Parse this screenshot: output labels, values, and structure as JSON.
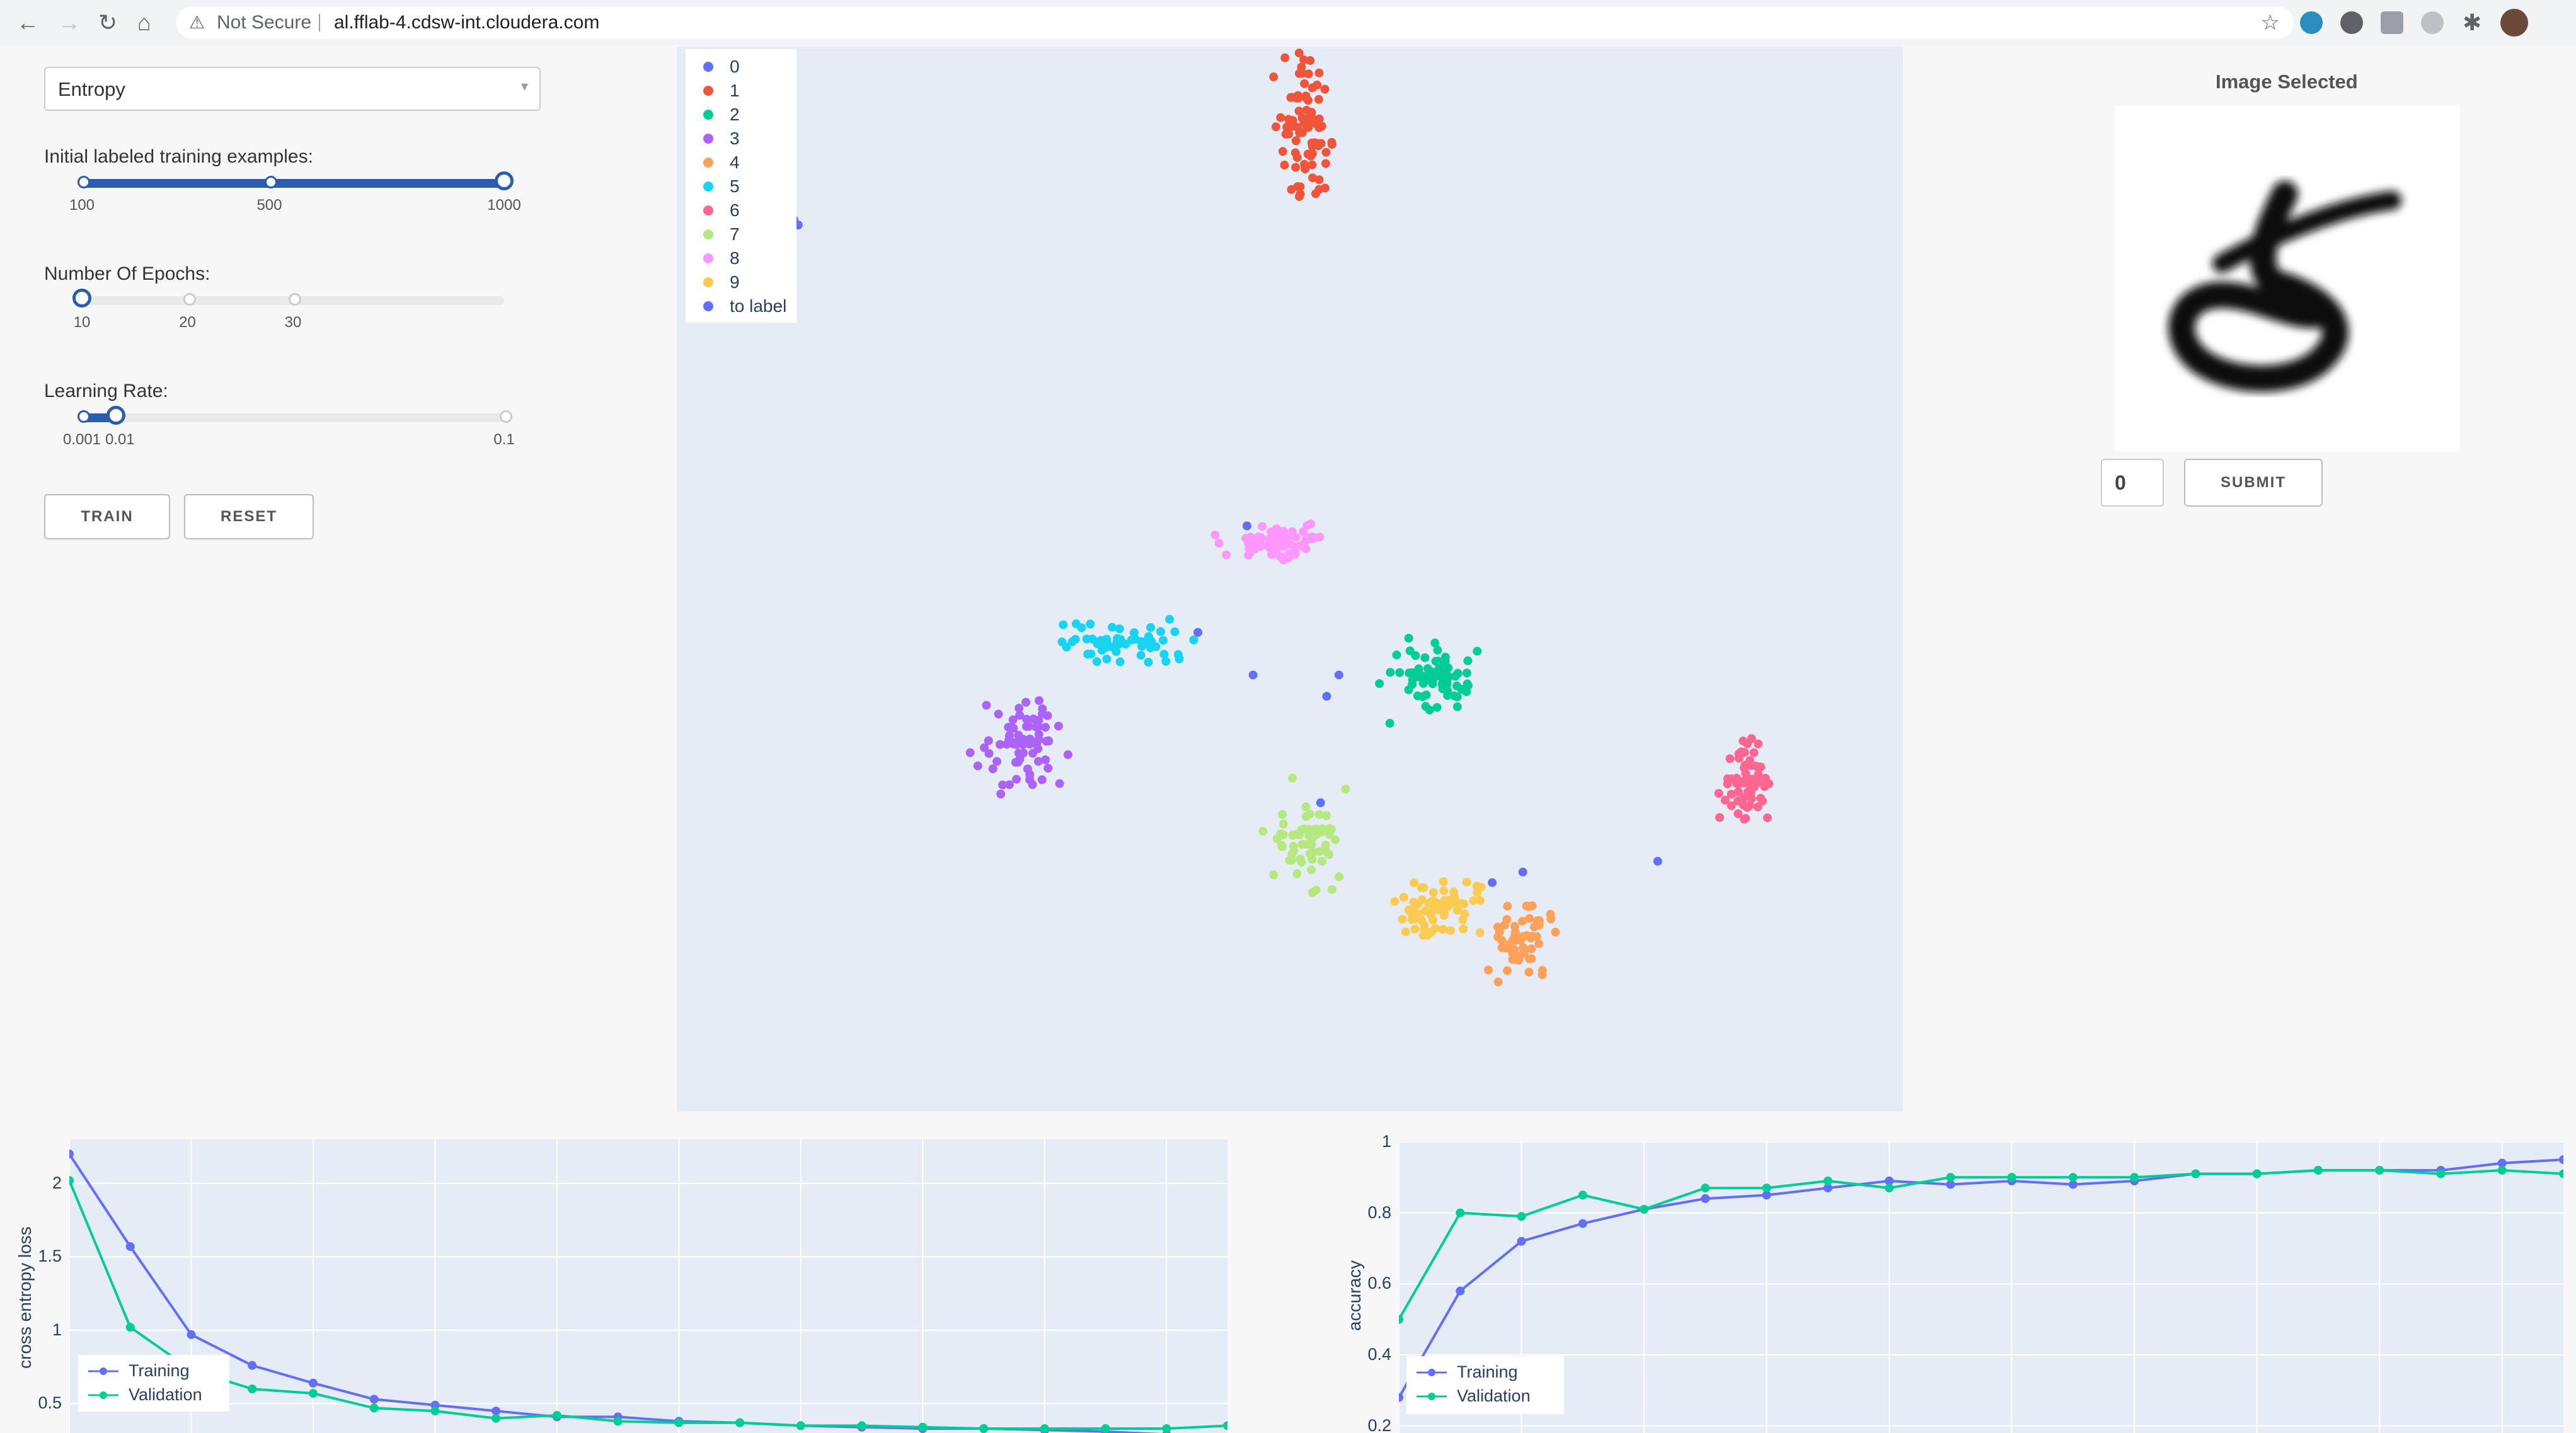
{
  "browser": {
    "security": "Not Secure",
    "url": "al.fflab-4.cdsw-int.cloudera.com",
    "icons": [
      "back-icon",
      "forward-icon",
      "reload-icon",
      "home-icon",
      "warning-icon",
      "star-icon",
      "extension-icons",
      "profile-avatar"
    ]
  },
  "controls": {
    "strategy": {
      "selected": "Entropy"
    },
    "initial_examples": {
      "label": "Initial labeled training examples:",
      "ticks": [
        "100",
        "500",
        "1000"
      ],
      "value": 1000
    },
    "epochs": {
      "label": "Number Of Epochs:",
      "ticks": [
        "10",
        "20",
        "30"
      ],
      "value": 10
    },
    "learning_rate": {
      "label": "Learning Rate:",
      "ticks": [
        "0.001",
        "0.01",
        "0.1"
      ],
      "value": 0.01
    },
    "train_label": "TRAIN",
    "reset_label": "RESET"
  },
  "image_panel": {
    "title": "Image Selected",
    "label_value": "0",
    "submit_label": "SUBMIT"
  },
  "colors": {
    "0": "#636efa",
    "1": "#ef553b",
    "2": "#00cc96",
    "3": "#ab63fa",
    "4": "#ffa15a",
    "5": "#19d3f3",
    "6": "#ff6692",
    "7": "#b6e880",
    "8": "#ff97ff",
    "9": "#fecb52",
    "to label": "#636efa"
  },
  "chart_data": [
    {
      "type": "scatter",
      "legend": [
        "0",
        "1",
        "2",
        "3",
        "4",
        "5",
        "6",
        "7",
        "8",
        "9",
        "to label"
      ],
      "legend_placement": "top-left",
      "grid": false,
      "axes_visible": false,
      "clusters": [
        {
          "name": "0",
          "center": [
            -0.86,
            0.68
          ],
          "spread": [
            0.05,
            0.04
          ],
          "count": 60
        },
        {
          "name": "1",
          "center": [
            0.02,
            0.86
          ],
          "spread": [
            0.04,
            0.12
          ],
          "count": 90
        },
        {
          "name": "2",
          "center": [
            0.23,
            -0.18
          ],
          "spread": [
            0.06,
            0.06
          ],
          "count": 70
        },
        {
          "name": "3",
          "center": [
            -0.44,
            -0.31
          ],
          "spread": [
            0.06,
            0.07
          ],
          "count": 70
        },
        {
          "name": "4",
          "center": [
            0.38,
            -0.68
          ],
          "spread": [
            0.05,
            0.06
          ],
          "count": 55
        },
        {
          "name": "5",
          "center": [
            -0.28,
            -0.12
          ],
          "spread": [
            0.09,
            0.04
          ],
          "count": 55
        },
        {
          "name": "6",
          "center": [
            0.75,
            -0.39
          ],
          "spread": [
            0.04,
            0.07
          ],
          "count": 60
        },
        {
          "name": "7",
          "center": [
            0.03,
            -0.49
          ],
          "spread": [
            0.06,
            0.08
          ],
          "count": 60
        },
        {
          "name": "8",
          "center": [
            -0.02,
            0.07
          ],
          "spread": [
            0.07,
            0.03
          ],
          "count": 75
        },
        {
          "name": "9",
          "center": [
            0.24,
            -0.62
          ],
          "spread": [
            0.06,
            0.05
          ],
          "count": 65
        }
      ],
      "to_label_points": [
        [
          -0.15,
          -0.1
        ],
        [
          -0.06,
          -0.18
        ],
        [
          0.08,
          -0.18
        ],
        [
          0.06,
          -0.22
        ],
        [
          0.33,
          -0.57
        ],
        [
          0.38,
          -0.55
        ],
        [
          0.6,
          -0.53
        ],
        [
          0.05,
          -0.42
        ],
        [
          -0.07,
          0.1
        ]
      ]
    },
    {
      "type": "line",
      "xlabel": "",
      "ylabel": "cross entropy loss",
      "yticks": [
        0.5,
        1,
        1.5,
        2
      ],
      "ylim": [
        0.3,
        2.3
      ],
      "xlim": [
        1,
        20
      ],
      "x": [
        1,
        2,
        3,
        4,
        5,
        6,
        7,
        8,
        9,
        10,
        11,
        12,
        13,
        14,
        15,
        16,
        17,
        18,
        19,
        20
      ],
      "series": [
        {
          "name": "Training",
          "color": "#636efa",
          "values": [
            2.2,
            1.57,
            0.97,
            0.76,
            0.64,
            0.53,
            0.49,
            0.45,
            0.41,
            0.41,
            0.38,
            0.37,
            0.35,
            0.34,
            0.33,
            0.33,
            0.32,
            0.31,
            0.29,
            0.27
          ]
        },
        {
          "name": "Validation",
          "color": "#00cc96",
          "values": [
            2.02,
            1.02,
            0.73,
            0.6,
            0.57,
            0.47,
            0.45,
            0.4,
            0.42,
            0.38,
            0.37,
            0.37,
            0.35,
            0.35,
            0.34,
            0.33,
            0.33,
            0.33,
            0.33,
            0.35
          ]
        }
      ],
      "legend": [
        "Training",
        "Validation"
      ],
      "legend_placement": "bottom-left",
      "grid": true
    },
    {
      "type": "line",
      "xlabel": "",
      "ylabel": "accuracy",
      "yticks": [
        0.2,
        0.4,
        0.6,
        0.8,
        1
      ],
      "ylim": [
        0.18,
        1.0
      ],
      "xlim": [
        1,
        20
      ],
      "x": [
        1,
        2,
        3,
        4,
        5,
        6,
        7,
        8,
        9,
        10,
        11,
        12,
        13,
        14,
        15,
        16,
        17,
        18,
        19,
        20
      ],
      "series": [
        {
          "name": "Training",
          "color": "#636efa",
          "values": [
            0.28,
            0.58,
            0.72,
            0.77,
            0.81,
            0.84,
            0.85,
            0.87,
            0.89,
            0.88,
            0.89,
            0.88,
            0.89,
            0.91,
            0.91,
            0.92,
            0.92,
            0.92,
            0.94,
            0.95
          ]
        },
        {
          "name": "Validation",
          "color": "#00cc96",
          "values": [
            0.5,
            0.8,
            0.79,
            0.85,
            0.81,
            0.87,
            0.87,
            0.89,
            0.87,
            0.9,
            0.9,
            0.9,
            0.9,
            0.91,
            0.91,
            0.92,
            0.92,
            0.91,
            0.92,
            0.91
          ]
        }
      ],
      "legend": [
        "Training",
        "Validation"
      ],
      "legend_placement": "bottom-left",
      "grid": true
    }
  ]
}
